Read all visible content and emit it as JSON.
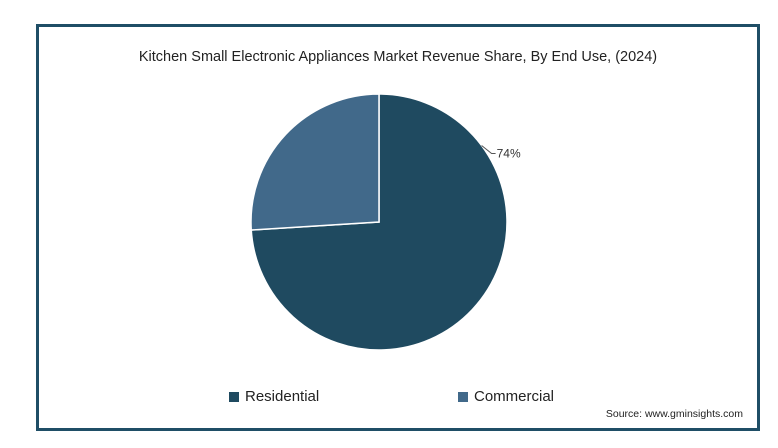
{
  "chart_data": {
    "type": "pie",
    "title": "Kitchen Small Electronic Appliances Market Revenue Share, By End Use, (2024)",
    "categories": [
      "Residential",
      "Commercial"
    ],
    "values": [
      74,
      26
    ],
    "colors": [
      "#1f4a60",
      "#41698a"
    ],
    "data_labels": [
      "74%",
      ""
    ],
    "legend_position": "bottom"
  },
  "source": "Source: www.gminsights.com"
}
